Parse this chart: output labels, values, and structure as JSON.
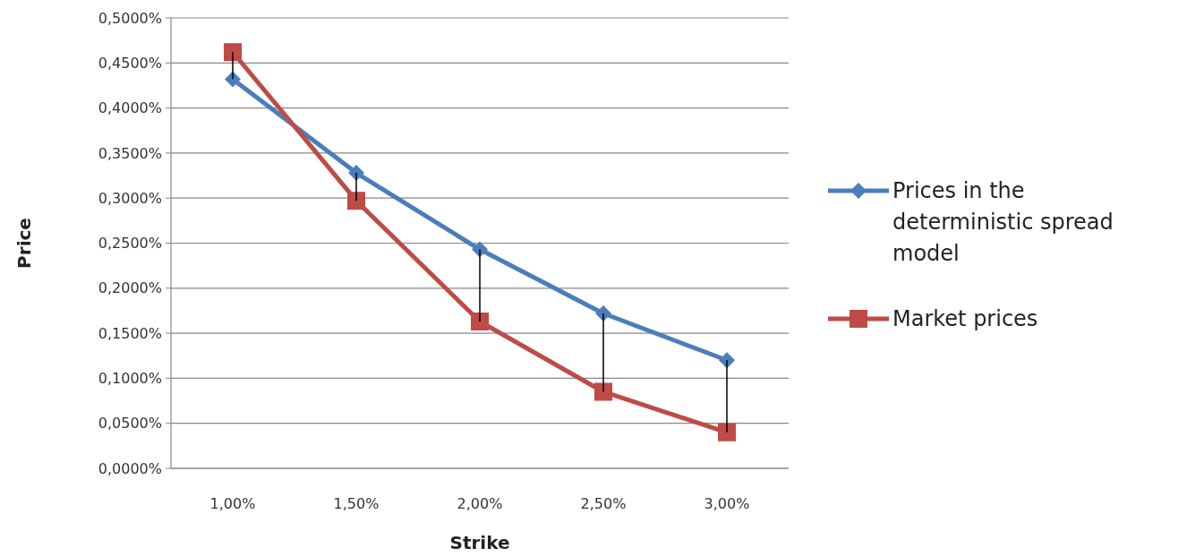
{
  "chart_data": {
    "type": "line",
    "xlabel": "Strike",
    "ylabel": "Price",
    "categories": [
      "1,00%",
      "1,50%",
      "2,00%",
      "2,50%",
      "3,00%"
    ],
    "series": [
      {
        "name": "Prices in the deterministic spread model",
        "color": "#4a7ebb",
        "marker": "diamond",
        "values": [
          0.432,
          0.328,
          0.243,
          0.172,
          0.12
        ],
        "errors": [
          [
            0.432,
            0.462
          ],
          [
            0.297,
            0.328
          ],
          [
            0.163,
            0.243
          ],
          [
            0.085,
            0.172
          ],
          [
            0.04,
            0.12
          ]
        ]
      },
      {
        "name": "Market prices",
        "color": "#be4b48",
        "marker": "square",
        "values": [
          0.462,
          0.297,
          0.163,
          0.085,
          0.04
        ]
      }
    ],
    "ylim": [
      0,
      0.5
    ],
    "yticks": [
      {
        "value": 0,
        "label": "0,0000%"
      },
      {
        "value": 0.05,
        "label": "0,0500%"
      },
      {
        "value": 0.1,
        "label": "0,1000%"
      },
      {
        "value": 0.15,
        "label": "0,1500%"
      },
      {
        "value": 0.2,
        "label": "0,2000%"
      },
      {
        "value": 0.25,
        "label": "0,2500%"
      },
      {
        "value": 0.3,
        "label": "0,3000%"
      },
      {
        "value": 0.35,
        "label": "0,3500%"
      },
      {
        "value": 0.4,
        "label": "0,4000%"
      },
      {
        "value": 0.45,
        "label": "0,4500%"
      },
      {
        "value": 0.5,
        "label": "0,5000%"
      }
    ],
    "grid": "y",
    "legend": "right",
    "line_style": "solid"
  }
}
